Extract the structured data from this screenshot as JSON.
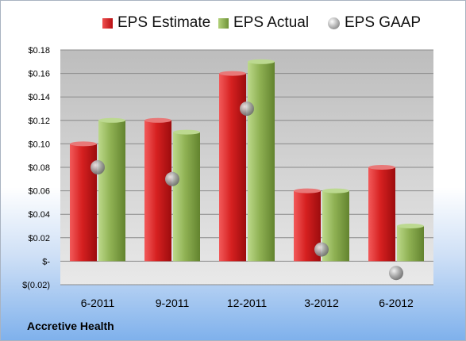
{
  "legend": {
    "estimate": "EPS Estimate",
    "actual": "EPS Actual",
    "gaap": "EPS GAAP"
  },
  "company": "Accretive Health",
  "colors": {
    "estimate": "#c81e1e",
    "actual": "#8fb153",
    "gaap": "#9a9a9a",
    "plot_background": "#c9c9c9"
  },
  "chart_data": {
    "type": "bar",
    "categories": [
      "6-2011",
      "9-2011",
      "12-2011",
      "3-2012",
      "6-2012"
    ],
    "series": [
      {
        "name": "EPS Estimate",
        "values": [
          0.1,
          0.12,
          0.16,
          0.06,
          0.08
        ]
      },
      {
        "name": "EPS Actual",
        "values": [
          0.12,
          0.11,
          0.17,
          0.06,
          0.03
        ]
      },
      {
        "name": "EPS GAAP",
        "marker": "circle",
        "values": [
          0.08,
          0.07,
          0.13,
          0.01,
          -0.01
        ]
      }
    ],
    "ylim": [
      -0.02,
      0.18
    ],
    "yticks": [
      0.18,
      0.16,
      0.14,
      0.12,
      0.1,
      0.08,
      0.06,
      0.04,
      0.02,
      0,
      -0.02
    ],
    "ytick_labels": [
      "$0.18",
      "$0.16",
      "$0.14",
      "$0.12",
      "$0.10",
      "$0.08",
      "$0.06",
      "$0.04",
      "$0.02",
      "$-",
      "$(0.02)"
    ],
    "grid": true,
    "legend_position": "top"
  }
}
